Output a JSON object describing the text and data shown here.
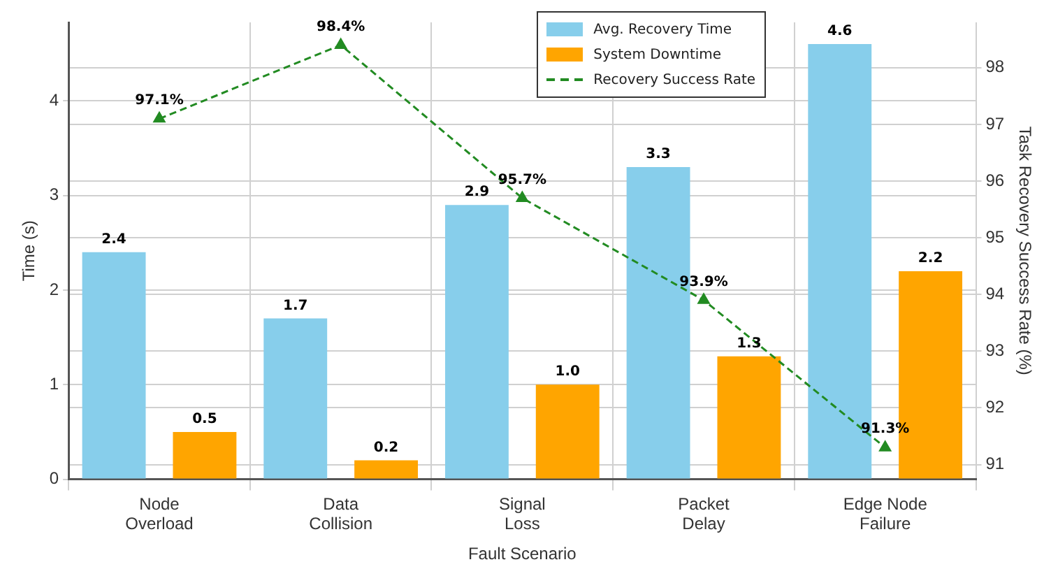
{
  "chart_data": {
    "type": "bar",
    "xlabel": "Fault Scenario",
    "ylabel": "Time (s)",
    "y2label": "Task Recovery Success Rate (%)",
    "categories": [
      "Node Overload",
      "Data Collision",
      "Signal Loss",
      "Packet Delay",
      "Edge Node Failure"
    ],
    "series": [
      {
        "name": "Avg. Recovery Time",
        "color": "#87ceeb",
        "values": [
          2.4,
          1.7,
          2.9,
          3.3,
          4.6
        ],
        "value_labels": [
          "2.4",
          "1.7",
          "2.9",
          "3.3",
          "4.6"
        ]
      },
      {
        "name": "System Downtime",
        "color": "#ffa500",
        "values": [
          0.5,
          0.2,
          1.0,
          1.3,
          2.2
        ],
        "value_labels": [
          "0.5",
          "0.2",
          "1.0",
          "1.3",
          "2.2"
        ]
      },
      {
        "name": "Recovery Success Rate",
        "type": "line",
        "axis": "y2",
        "color": "#228b22",
        "marker": "triangle",
        "line_style": "dashed",
        "values": [
          97.1,
          98.4,
          95.7,
          93.9,
          91.3
        ],
        "value_labels": [
          "97.1%",
          "98.4%",
          "95.7%",
          "93.9%",
          "91.3%"
        ]
      }
    ],
    "ylim": [
      0,
      4.83
    ],
    "yticks": [
      0,
      1,
      2,
      3,
      4
    ],
    "y2lim": [
      90.74,
      98.8
    ],
    "y2ticks": [
      91,
      92,
      93,
      94,
      95,
      96,
      97,
      98
    ],
    "grid": true,
    "legend": "top"
  }
}
